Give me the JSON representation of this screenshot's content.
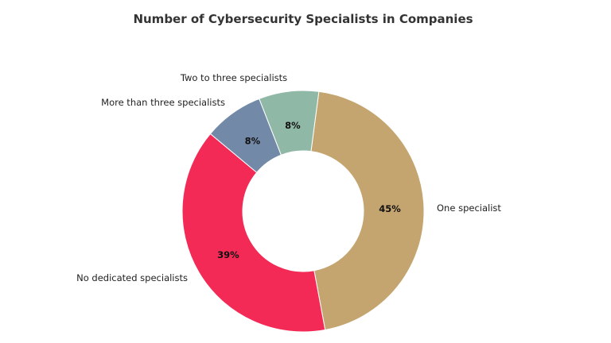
{
  "chart_data": {
    "type": "pie",
    "subtype": "donut",
    "title": "Number of Cybersecurity Specialists in Companies",
    "categories": [
      "One specialist",
      "No dedicated specialists",
      "More than three specialists",
      "Two to three specialists"
    ],
    "values": [
      45,
      39,
      8,
      8
    ],
    "value_labels": [
      "45%",
      "39%",
      "8%",
      "8%"
    ],
    "colors": [
      "#C4A46F",
      "#F32A56",
      "#7389A8",
      "#8FB8A6"
    ],
    "legend": "none (labels placed outside wedges)"
  },
  "title": "Number of Cybersecurity Specialists in Companies",
  "slices": [
    {
      "label": "One specialist",
      "pct": "45%"
    },
    {
      "label": "No dedicated specialists",
      "pct": "39%"
    },
    {
      "label": "More than three specialists",
      "pct": "8%"
    },
    {
      "label": "Two to three specialists",
      "pct": "8%"
    }
  ]
}
